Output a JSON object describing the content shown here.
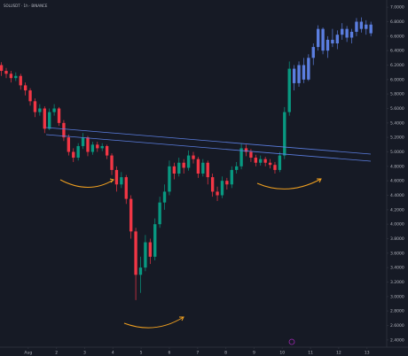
{
  "chart_data": {
    "type": "candlestick",
    "title": "SOLUSDT · 1h · BINANCE",
    "xlim": [
      0,
      13.7
    ],
    "ylim": [
      2.3,
      7.1
    ],
    "grid": false,
    "xticks": [
      {
        "value": 1,
        "label": "Aug"
      },
      2,
      3,
      4,
      5,
      6,
      7,
      8,
      9,
      10,
      11,
      12,
      13
    ],
    "yticks": [
      {
        "value": 2.4,
        "label": "2.4000"
      },
      {
        "value": 2.6,
        "label": "2.6000"
      },
      {
        "value": 2.8,
        "label": "2.8000"
      },
      {
        "value": 3,
        "label": "3.0000"
      },
      {
        "value": 3.2,
        "label": "3.2000"
      },
      {
        "value": 3.4,
        "label": "3.4000"
      },
      {
        "value": 3.6,
        "label": "3.6000"
      },
      {
        "value": 3.8,
        "label": "3.8000"
      },
      {
        "value": 4,
        "label": "4.0000"
      },
      {
        "value": 4.2,
        "label": "4.2000"
      },
      {
        "value": 4.4,
        "label": "4.4000"
      },
      {
        "value": 4.6,
        "label": "4.6000"
      },
      {
        "value": 4.8,
        "label": "4.8000"
      },
      {
        "value": 5,
        "label": "5.0000"
      },
      {
        "value": 5.2,
        "label": "5.2000"
      },
      {
        "value": 5.4,
        "label": "5.4000"
      },
      {
        "value": 5.6,
        "label": "5.6000"
      },
      {
        "value": 5.8,
        "label": "5.8000"
      },
      {
        "value": 6,
        "label": "6.0000"
      },
      {
        "value": 6.2,
        "label": "6.2000"
      },
      {
        "value": 6.4,
        "label": "6.4000"
      },
      {
        "value": 6.6,
        "label": "6.6000"
      },
      {
        "value": 6.8,
        "label": "6.8000"
      },
      {
        "value": 7,
        "label": "7.0000"
      }
    ],
    "series": [
      {
        "up_color": "#089981",
        "down_color": "#f23645",
        "x": [
          0.05,
          0.22,
          0.39,
          0.56,
          0.73,
          0.9,
          1.07,
          1.24,
          1.41,
          1.58,
          1.75,
          1.92,
          2.09,
          2.26,
          2.43,
          2.6,
          2.77,
          2.94,
          3.11,
          3.28,
          3.45,
          3.62,
          3.79,
          3.96,
          4.13,
          4.3,
          4.47,
          4.64,
          4.81,
          4.98,
          5.15,
          5.32,
          5.49,
          5.66,
          5.83,
          6,
          6.17,
          6.34,
          6.51,
          6.68,
          6.85,
          7.02,
          7.19,
          7.36,
          7.53,
          7.7,
          7.87,
          8.04,
          8.21,
          8.38,
          8.55,
          8.72,
          8.89,
          9.06,
          9.23,
          9.4,
          9.57,
          9.74,
          9.91,
          10.08,
          10.25
        ],
        "open": [
          6.2,
          6.12,
          6.08,
          6.02,
          6.05,
          5.92,
          5.85,
          5.7,
          5.55,
          5.6,
          5.32,
          5.55,
          5.6,
          5.4,
          5.2,
          5,
          4.92,
          5.08,
          5.2,
          5,
          5.1,
          5.05,
          5.08,
          4.95,
          4.75,
          4.55,
          4.65,
          4.35,
          3.9,
          3.3,
          3.4,
          3.75,
          3.55,
          4,
          4.3,
          4.45,
          4.8,
          4.7,
          4.85,
          4.78,
          4.95,
          4.9,
          4.7,
          4.85,
          4.65,
          4.45,
          4.4,
          4.6,
          4.55,
          4.75,
          4.8,
          5.05,
          5,
          4.92,
          4.85,
          4.9,
          4.85,
          4.82,
          4.75,
          4.95,
          5.55
        ],
        "high": [
          6.24,
          6.16,
          6.12,
          6.1,
          6.08,
          5.96,
          5.88,
          5.74,
          5.66,
          5.63,
          5.6,
          5.66,
          5.62,
          5.44,
          5.24,
          5.05,
          5.12,
          5.26,
          5.22,
          5.14,
          5.14,
          5.12,
          5.1,
          4.98,
          4.8,
          4.72,
          4.68,
          4.4,
          3.95,
          3.55,
          3.85,
          3.8,
          4.08,
          4.38,
          4.55,
          4.88,
          4.85,
          4.92,
          4.9,
          5.02,
          5,
          4.93,
          4.9,
          4.88,
          4.7,
          4.52,
          4.66,
          4.64,
          4.8,
          4.86,
          5.12,
          5.1,
          5.04,
          4.96,
          4.95,
          4.93,
          4.9,
          4.86,
          5,
          5.62,
          6.25
        ],
        "low": [
          6.05,
          6.02,
          5.96,
          5.98,
          5.86,
          5.78,
          5.64,
          5.48,
          5.5,
          5.26,
          5.3,
          5.5,
          5.36,
          5.15,
          4.95,
          4.86,
          4.88,
          5.04,
          4.94,
          4.96,
          5,
          5.01,
          4.9,
          4.68,
          4.45,
          4.5,
          4.28,
          3.8,
          2.95,
          3.05,
          3.35,
          3.45,
          3.5,
          3.95,
          4.2,
          4.4,
          4.62,
          4.66,
          4.7,
          4.74,
          4.84,
          4.64,
          4.66,
          4.55,
          4.38,
          4.32,
          4.36,
          4.48,
          4.5,
          4.7,
          4.76,
          4.94,
          4.86,
          4.8,
          4.81,
          4.8,
          4.77,
          4.7,
          4.72,
          4.9,
          5.5
        ],
        "close": [
          6.12,
          6.08,
          6.02,
          6.05,
          5.92,
          5.85,
          5.7,
          5.55,
          5.6,
          5.32,
          5.55,
          5.6,
          5.4,
          5.2,
          5,
          4.92,
          5.08,
          5.2,
          5,
          5.1,
          5.05,
          5.08,
          4.95,
          4.75,
          4.55,
          4.65,
          4.35,
          3.9,
          3.3,
          3.4,
          3.75,
          3.55,
          4,
          4.3,
          4.45,
          4.8,
          4.7,
          4.85,
          4.78,
          4.95,
          4.9,
          4.7,
          4.85,
          4.65,
          4.45,
          4.4,
          4.6,
          4.55,
          4.75,
          4.8,
          5.05,
          5,
          4.92,
          4.85,
          4.9,
          4.85,
          4.82,
          4.75,
          4.95,
          5.55,
          6.15
        ]
      },
      {
        "color": "#5b7ee0",
        "x": [
          10.42,
          10.59,
          10.76,
          10.93,
          11.1,
          11.27,
          11.44,
          11.61,
          11.78,
          11.95,
          12.12,
          12.29,
          12.46,
          12.63,
          12.8,
          12.97,
          13.14
        ],
        "open": [
          6.15,
          5.95,
          6.2,
          6,
          6.3,
          6.45,
          6.7,
          6.4,
          6.55,
          6.5,
          6.62,
          6.7,
          6.58,
          6.66,
          6.8,
          6.7,
          6.76
        ],
        "high": [
          6.2,
          6.25,
          6.3,
          6.35,
          6.5,
          6.75,
          6.72,
          6.6,
          6.7,
          6.68,
          6.78,
          6.74,
          6.7,
          6.85,
          6.86,
          6.82,
          6.8
        ],
        "low": [
          5.85,
          5.9,
          5.95,
          5.98,
          6.2,
          6.4,
          6.35,
          6.3,
          6.45,
          6.42,
          6.55,
          6.52,
          6.5,
          6.6,
          6.65,
          6.62,
          6.6
        ],
        "close": [
          5.95,
          6.2,
          6,
          6.3,
          6.45,
          6.7,
          6.4,
          6.55,
          6.5,
          6.62,
          6.7,
          6.58,
          6.66,
          6.8,
          6.7,
          6.76,
          6.64
        ]
      }
    ]
  }
}
